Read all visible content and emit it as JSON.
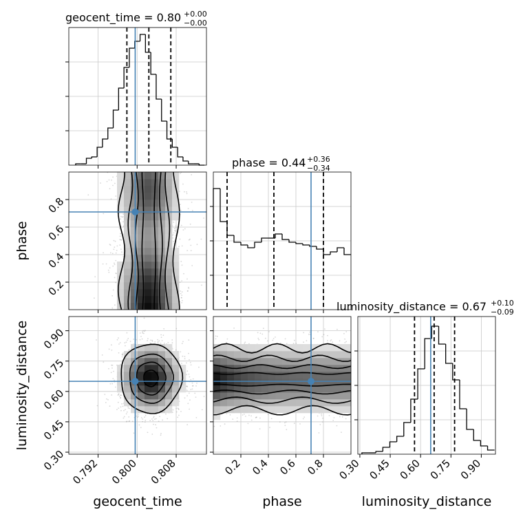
{
  "chart_data": {
    "type": "corner",
    "parameters": [
      "geocent_time",
      "phase",
      "luminosity_distance"
    ],
    "truths": {
      "geocent_time": 0.7996,
      "phase": 0.71,
      "luminosity_distance": 0.65
    },
    "panels": {
      "geocent_time": {
        "title": {
          "main": "geocent_time = 0.80",
          "sup": "+0.00",
          "sub": "−0.00"
        },
        "xlim": [
          0.786,
          0.8142
        ],
        "xticks": [
          0.792,
          0.8,
          0.808
        ],
        "xtick_labels": [
          "0.792",
          "0.800",
          "0.808"
        ],
        "xlabel": "geocent_time",
        "quantiles": [
          0.7979,
          0.8024,
          0.8069
        ],
        "histogram": {
          "type": "step",
          "bin_start": 0.7874,
          "bin_width": 0.0011,
          "counts": [
            0.01,
            0.01,
            0.05,
            0.06,
            0.13,
            0.19,
            0.27,
            0.4,
            0.56,
            0.71,
            0.85,
            0.9,
            0.95,
            0.82,
            0.66,
            0.48,
            0.32,
            0.19,
            0.13,
            0.06,
            0.03,
            0.01,
            0.01,
            0.0
          ]
        }
      },
      "phase": {
        "title": {
          "main": "phase = 0.44",
          "sup": "+0.36",
          "sub": "−0.34"
        },
        "xlim": [
          0.0,
          1.0
        ],
        "xticks": [
          0.2,
          0.4,
          0.6,
          0.8
        ],
        "xtick_labels": [
          "0.2",
          "0.4",
          "0.6",
          "0.8"
        ],
        "ylim": [
          0.0,
          1.0
        ],
        "yticks": [
          0.2,
          0.4,
          0.6,
          0.8
        ],
        "ytick_labels": [
          "0.2",
          "0.4",
          "0.6",
          "0.8"
        ],
        "xlabel": "phase",
        "ylabel": "phase",
        "quantiles": [
          0.1,
          0.44,
          0.8
        ],
        "histogram": {
          "type": "step",
          "bin_start": 0.0,
          "bin_width": 0.05,
          "counts": [
            0.88,
            0.64,
            0.54,
            0.49,
            0.47,
            0.45,
            0.49,
            0.52,
            0.52,
            0.55,
            0.51,
            0.49,
            0.48,
            0.47,
            0.46,
            0.44,
            0.4,
            0.42,
            0.45,
            0.4
          ]
        }
      },
      "luminosity_distance": {
        "title": {
          "main": "luminosity_distance = 0.67",
          "sup": "+0.10",
          "sub": "−0.09"
        },
        "xlim": [
          0.29,
          0.97
        ],
        "xticks": [
          0.3,
          0.45,
          0.6,
          0.75,
          0.9
        ],
        "xtick_labels": [
          "0.30",
          "0.45",
          "0.60",
          "0.75",
          "0.90"
        ],
        "ylim": [
          0.29,
          0.97
        ],
        "yticks": [
          0.3,
          0.45,
          0.6,
          0.75,
          0.9
        ],
        "ytick_labels": [
          "0.30",
          "0.45",
          "0.60",
          "0.75",
          "0.90"
        ],
        "xlabel": "luminosity_distance",
        "ylabel": "luminosity_distance",
        "quantiles": [
          0.57,
          0.667,
          0.768
        ],
        "histogram": {
          "type": "step",
          "bin_start": 0.31,
          "bin_width": 0.0345,
          "counts": [
            0.01,
            0.01,
            0.02,
            0.05,
            0.09,
            0.13,
            0.23,
            0.4,
            0.62,
            0.84,
            0.93,
            0.8,
            0.66,
            0.54,
            0.33,
            0.18,
            0.1,
            0.06,
            0.03
          ]
        }
      }
    },
    "contours": {
      "phase_vs_geocent_time": {
        "center_x": 0.8024,
        "sigma_x": 0.0033,
        "levels": [
          0.118,
          0.393,
          0.675,
          0.865
        ],
        "kde_peak_y": 0.02
      },
      "luminosity_distance_vs_geocent_time": {
        "center_x": 0.8028,
        "center_y": 0.665,
        "sigma_x": 0.0033,
        "sigma_y": 0.09,
        "levels": [
          0.118,
          0.393,
          0.675,
          0.865
        ]
      },
      "luminosity_distance_vs_phase": {
        "center_y": 0.66,
        "sigma_y": 0.09,
        "levels": [
          0.118,
          0.393,
          0.675,
          0.865
        ]
      }
    },
    "colors": {
      "truth": "#4682b4",
      "line": "#000000",
      "grid": "#c8c8c8",
      "scatter": "#8c8c8c"
    },
    "grid": true
  }
}
